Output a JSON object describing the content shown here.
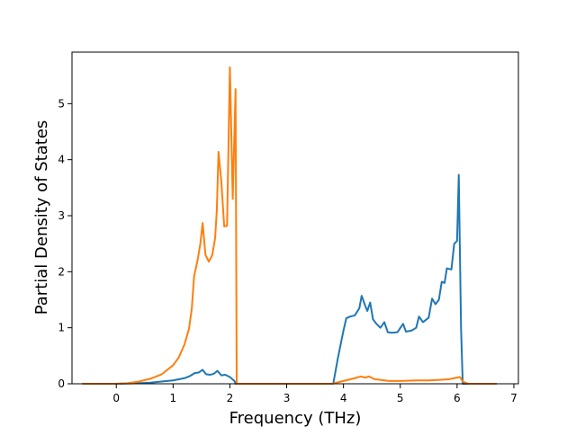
{
  "chart_data": {
    "type": "line",
    "xlabel": "Frequency (THz)",
    "ylabel": "Partial Density of States",
    "xlim": [
      -0.78,
      7.08
    ],
    "ylim": [
      0,
      5.92
    ],
    "x_ticks": [
      0,
      1,
      2,
      3,
      4,
      5,
      6,
      7
    ],
    "y_ticks": [
      0,
      1,
      2,
      3,
      4,
      5
    ],
    "grid": false,
    "legend": "none",
    "series": [
      {
        "color": "#1f77b4",
        "points": [
          [
            -0.6,
            0
          ],
          [
            0,
            0
          ],
          [
            0.4,
            0.01
          ],
          [
            0.6,
            0.02
          ],
          [
            0.8,
            0.04
          ],
          [
            1.0,
            0.06
          ],
          [
            1.1,
            0.08
          ],
          [
            1.2,
            0.1
          ],
          [
            1.3,
            0.14
          ],
          [
            1.38,
            0.19
          ],
          [
            1.45,
            0.2
          ],
          [
            1.52,
            0.25
          ],
          [
            1.58,
            0.17
          ],
          [
            1.65,
            0.16
          ],
          [
            1.72,
            0.18
          ],
          [
            1.78,
            0.23
          ],
          [
            1.85,
            0.15
          ],
          [
            1.92,
            0.16
          ],
          [
            2.0,
            0.12
          ],
          [
            2.08,
            0.05
          ],
          [
            2.1,
            0
          ],
          [
            3.0,
            0
          ],
          [
            3.82,
            0
          ],
          [
            3.9,
            0.45
          ],
          [
            3.95,
            0.7
          ],
          [
            4.0,
            0.95
          ],
          [
            4.05,
            1.17
          ],
          [
            4.12,
            1.2
          ],
          [
            4.2,
            1.22
          ],
          [
            4.28,
            1.35
          ],
          [
            4.32,
            1.57
          ],
          [
            4.38,
            1.4
          ],
          [
            4.42,
            1.3
          ],
          [
            4.47,
            1.45
          ],
          [
            4.52,
            1.15
          ],
          [
            4.58,
            1.07
          ],
          [
            4.65,
            1.0
          ],
          [
            4.72,
            1.1
          ],
          [
            4.78,
            0.92
          ],
          [
            4.85,
            0.91
          ],
          [
            4.95,
            0.92
          ],
          [
            5.05,
            1.07
          ],
          [
            5.1,
            0.93
          ],
          [
            5.2,
            0.95
          ],
          [
            5.28,
            1.0
          ],
          [
            5.33,
            1.2
          ],
          [
            5.4,
            1.1
          ],
          [
            5.5,
            1.18
          ],
          [
            5.56,
            1.52
          ],
          [
            5.62,
            1.42
          ],
          [
            5.68,
            1.5
          ],
          [
            5.73,
            1.82
          ],
          [
            5.78,
            1.8
          ],
          [
            5.82,
            2.06
          ],
          [
            5.9,
            2.04
          ],
          [
            5.95,
            2.5
          ],
          [
            6.0,
            2.55
          ],
          [
            6.03,
            3.73
          ],
          [
            6.07,
            1.0
          ],
          [
            6.1,
            0
          ],
          [
            6.7,
            0
          ]
        ]
      },
      {
        "color": "#ff7f0e",
        "points": [
          [
            -0.6,
            0
          ],
          [
            0,
            0
          ],
          [
            0.2,
            0.01
          ],
          [
            0.4,
            0.04
          ],
          [
            0.6,
            0.09
          ],
          [
            0.8,
            0.17
          ],
          [
            1.0,
            0.33
          ],
          [
            1.1,
            0.47
          ],
          [
            1.2,
            0.7
          ],
          [
            1.28,
            0.98
          ],
          [
            1.33,
            1.35
          ],
          [
            1.37,
            1.92
          ],
          [
            1.43,
            2.2
          ],
          [
            1.48,
            2.5
          ],
          [
            1.52,
            2.87
          ],
          [
            1.57,
            2.3
          ],
          [
            1.63,
            2.18
          ],
          [
            1.69,
            2.3
          ],
          [
            1.74,
            2.6
          ],
          [
            1.77,
            3.1
          ],
          [
            1.8,
            4.14
          ],
          [
            1.85,
            3.6
          ],
          [
            1.9,
            2.81
          ],
          [
            1.95,
            2.82
          ],
          [
            2.0,
            5.65
          ],
          [
            2.05,
            3.3
          ],
          [
            2.1,
            5.26
          ],
          [
            2.12,
            0
          ],
          [
            3.0,
            0
          ],
          [
            3.8,
            0
          ],
          [
            4.0,
            0.05
          ],
          [
            4.2,
            0.1
          ],
          [
            4.3,
            0.13
          ],
          [
            4.38,
            0.11
          ],
          [
            4.45,
            0.13
          ],
          [
            4.55,
            0.08
          ],
          [
            4.65,
            0.07
          ],
          [
            4.72,
            0.06
          ],
          [
            4.8,
            0.05
          ],
          [
            5.0,
            0.05
          ],
          [
            5.3,
            0.06
          ],
          [
            5.5,
            0.06
          ],
          [
            5.7,
            0.07
          ],
          [
            5.85,
            0.08
          ],
          [
            6.0,
            0.11
          ],
          [
            6.05,
            0.12
          ],
          [
            6.1,
            0.04
          ],
          [
            6.2,
            0
          ],
          [
            6.7,
            0
          ]
        ]
      }
    ]
  }
}
